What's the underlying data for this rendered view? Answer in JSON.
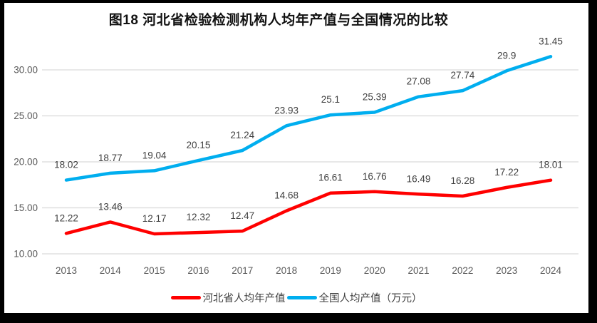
{
  "title_prefix": "图18",
  "chart_data": {
    "type": "line",
    "title": "图18 河北省检验检测机构人均年产值与全国情况的比较",
    "categories": [
      "2013",
      "2014",
      "2015",
      "2016",
      "2017",
      "2018",
      "2019",
      "2020",
      "2021",
      "2022",
      "2023",
      "2024"
    ],
    "series": [
      {
        "id": "national",
        "name": "全国人均产值（万元）",
        "color": "#00AEEF",
        "values": [
          18.02,
          18.77,
          19.04,
          20.15,
          21.24,
          23.93,
          25.1,
          25.39,
          27.08,
          27.74,
          29.9,
          31.45
        ]
      },
      {
        "id": "hebei",
        "name": "河北省人均年产值",
        "color": "#FF0000",
        "values": [
          12.22,
          13.46,
          12.17,
          12.32,
          12.47,
          14.68,
          16.61,
          16.76,
          16.49,
          16.28,
          17.22,
          18.01
        ]
      }
    ],
    "xlabel": "",
    "ylabel": "",
    "ylim": [
      10,
      32
    ],
    "yticks": [
      10,
      15,
      20,
      25,
      30
    ],
    "ytick_format": "2dp",
    "grid": true,
    "legend_position": "bottom",
    "legend_order": [
      "hebei",
      "national"
    ]
  },
  "style": {
    "grid_color": "#d9d9d9",
    "axis_text_color": "#595959",
    "data_label_color": "#404040",
    "frame_color": "#000000",
    "background": "#ffffff"
  }
}
